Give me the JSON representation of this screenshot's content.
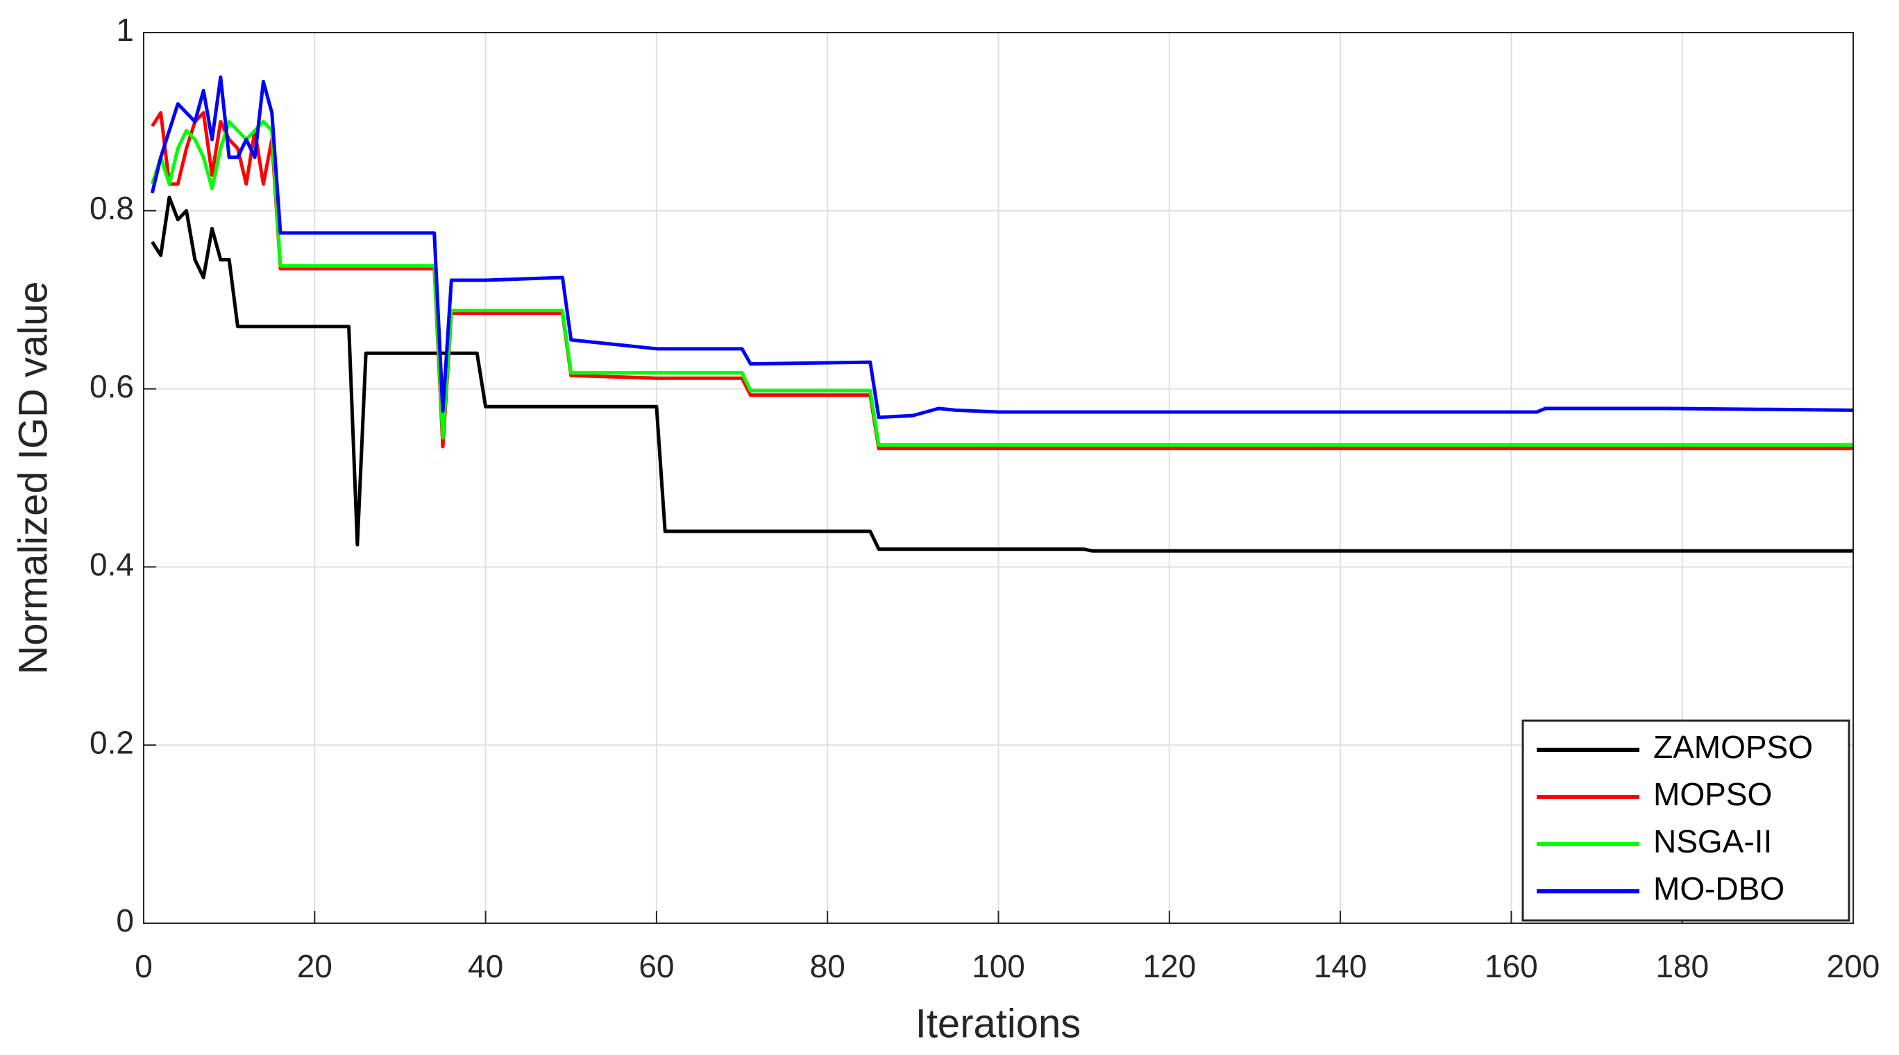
{
  "chart_data": {
    "type": "line",
    "xlabel": "Iterations",
    "ylabel": "Normalized IGD value",
    "x": [
      1,
      2,
      3,
      4,
      5,
      6,
      7,
      8,
      9,
      10,
      11,
      12,
      13,
      14,
      15,
      16,
      24,
      25,
      26,
      34,
      35,
      36,
      39,
      40,
      49,
      50,
      60,
      61,
      70,
      71,
      85,
      86,
      90,
      93,
      95,
      100,
      110,
      111,
      163,
      164,
      178,
      200
    ],
    "series": [
      {
        "name": "ZAMOPSO",
        "color": "#000000",
        "values": [
          0.765,
          0.75,
          0.815,
          0.79,
          0.8,
          0.745,
          0.725,
          0.78,
          0.745,
          0.745,
          0.67,
          0.67,
          0.67,
          0.67,
          0.67,
          0.67,
          0.67,
          0.425,
          0.64,
          0.64,
          0.64,
          0.64,
          0.64,
          0.58,
          0.58,
          0.58,
          0.58,
          0.44,
          0.44,
          0.44,
          0.44,
          0.42,
          0.42,
          0.42,
          0.42,
          0.42,
          0.42,
          0.418,
          0.418,
          0.418,
          0.418,
          0.418
        ]
      },
      {
        "name": "MOPSO",
        "color": "#ff0000",
        "values": [
          0.895,
          0.91,
          0.83,
          0.83,
          0.87,
          0.9,
          0.91,
          0.84,
          0.9,
          0.88,
          0.87,
          0.83,
          0.89,
          0.83,
          0.88,
          0.735,
          0.735,
          0.735,
          0.735,
          0.735,
          0.535,
          0.685,
          0.685,
          0.685,
          0.685,
          0.615,
          0.612,
          0.612,
          0.612,
          0.593,
          0.593,
          0.533,
          0.533,
          0.533,
          0.533,
          0.533,
          0.533,
          0.533,
          0.533,
          0.533,
          0.533,
          0.533
        ]
      },
      {
        "name": "NSGA-II",
        "color": "#00ff00",
        "values": [
          0.83,
          0.86,
          0.83,
          0.87,
          0.89,
          0.88,
          0.86,
          0.825,
          0.87,
          0.9,
          0.89,
          0.88,
          0.89,
          0.9,
          0.89,
          0.738,
          0.738,
          0.738,
          0.738,
          0.738,
          0.545,
          0.688,
          0.688,
          0.688,
          0.688,
          0.618,
          0.618,
          0.618,
          0.618,
          0.598,
          0.598,
          0.537,
          0.537,
          0.537,
          0.537,
          0.537,
          0.537,
          0.537,
          0.537,
          0.537,
          0.537,
          0.537
        ]
      },
      {
        "name": "MO-DBO",
        "color": "#0000ff",
        "values": [
          0.82,
          0.86,
          0.89,
          0.92,
          0.91,
          0.9,
          0.935,
          0.88,
          0.95,
          0.86,
          0.86,
          0.88,
          0.86,
          0.945,
          0.91,
          0.775,
          0.775,
          0.775,
          0.775,
          0.775,
          0.575,
          0.722,
          0.722,
          0.722,
          0.725,
          0.655,
          0.645,
          0.645,
          0.645,
          0.628,
          0.63,
          0.568,
          0.57,
          0.578,
          0.576,
          0.574,
          0.574,
          0.574,
          0.574,
          0.578,
          0.578,
          0.576
        ]
      }
    ],
    "xlim": [
      0,
      200
    ],
    "xticks": [
      0,
      20,
      40,
      60,
      80,
      100,
      120,
      140,
      160,
      180,
      200
    ],
    "ylim": [
      0,
      1
    ],
    "yticks": [
      0,
      0.2,
      0.4,
      0.6,
      0.8,
      1
    ],
    "grid": true,
    "legend": "lower right"
  }
}
